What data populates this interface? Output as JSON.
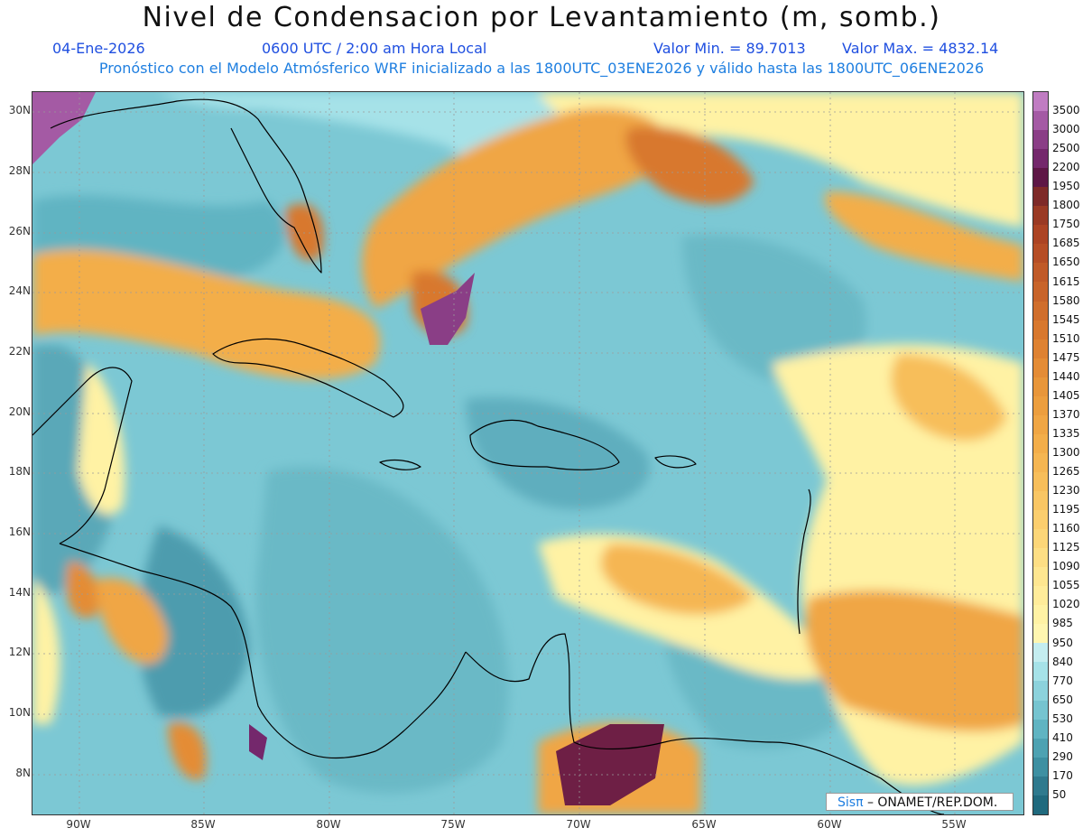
{
  "title": "Nivel de Condensacion por Levantamiento (m, somb.)",
  "subtitle": {
    "date": "04-Ene-2026",
    "time": "0600 UTC / 2:00 am Hora Local",
    "min": "Valor Min. = 89.7013",
    "max": "Valor Max. = 4832.14"
  },
  "subline": "Pronóstico con el Modelo Atmósferico WRF inicializado a las 1800UTC_03ENE2026 y válido hasta las  1800UTC_06ENE2026",
  "map": {
    "lon_labels": [
      "90W",
      "85W",
      "80W",
      "75W",
      "70W",
      "65W",
      "60W",
      "55W"
    ],
    "lat_labels": [
      "30N",
      "28N",
      "26N",
      "24N",
      "22N",
      "20N",
      "18N",
      "16N",
      "14N",
      "12N",
      "10N",
      "8N"
    ],
    "colors": {
      "ocean_low": "#5fb4c4",
      "ocean_mid": "#8fd3dc",
      "dry_pale": "#fff2a0",
      "orange": "#f0a448",
      "dark_orange": "#d07830",
      "maroon": "#6e1f45",
      "purple": "#a45aa4",
      "coast": "#000000"
    }
  },
  "colorbar": {
    "levels": [
      "3500",
      "3000",
      "2500",
      "2200",
      "1950",
      "1800",
      "1750",
      "1685",
      "1650",
      "1615",
      "1580",
      "1545",
      "1510",
      "1475",
      "1440",
      "1405",
      "1370",
      "1335",
      "1300",
      "1265",
      "1230",
      "1195",
      "1160",
      "1125",
      "1090",
      "1055",
      "1020",
      "985",
      "950",
      "840",
      "770",
      "650",
      "530",
      "410",
      "290",
      "170",
      "50"
    ],
    "colors": [
      "#c07cc2",
      "#a45aa4",
      "#8a3e86",
      "#74286c",
      "#5e1746",
      "#7e2a28",
      "#9a3a24",
      "#ac4424",
      "#b64e26",
      "#c05a28",
      "#c8642a",
      "#d06e2c",
      "#d8782e",
      "#de8232",
      "#e48c36",
      "#e8963a",
      "#ec9e3e",
      "#f0a644",
      "#f3ae4a",
      "#f5b652",
      "#f7be5a",
      "#f9c664",
      "#fbce6e",
      "#fcd678",
      "#fdde84",
      "#fee690",
      "#ffec9a",
      "#fff2a4",
      "#fff6b0",
      "#c4edf0",
      "#a6e2e8",
      "#8cd2dc",
      "#76c4d0",
      "#60b4c2",
      "#4ea2b2",
      "#3e90a2",
      "#2f7a8e",
      "#206a7e"
    ]
  },
  "credit": {
    "sis": "Sisπ",
    "text": "– ONAMET/REP.DOM."
  }
}
